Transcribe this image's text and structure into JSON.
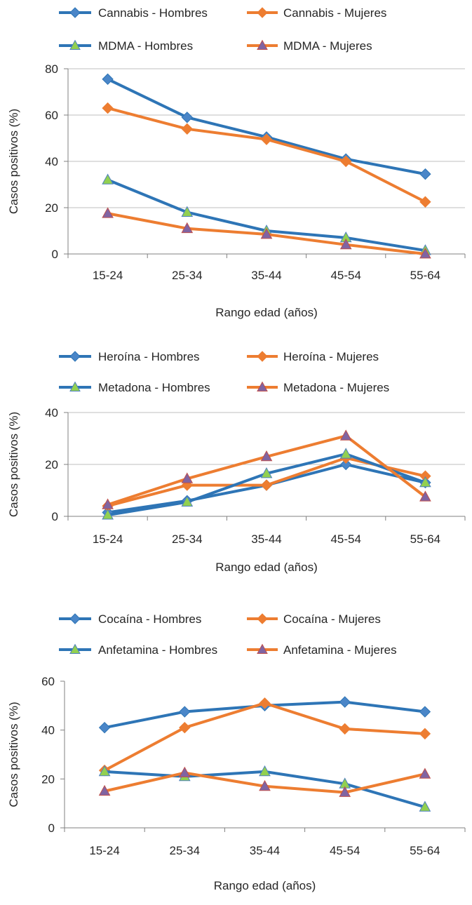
{
  "colors": {
    "hombres": "#2E75B6",
    "mujeres": "#ED7D31",
    "marker_hombres_fill": "#4A86C8",
    "triangle_fill": "#92D050",
    "triangle_mujeres_fill": "#8064A2",
    "axis": "#808080",
    "grid": "#BFBFBF"
  },
  "chart_data": [
    {
      "type": "line",
      "categories": [
        "15-24",
        "25-34",
        "35-44",
        "45-54",
        "55-64"
      ],
      "xlabel": "Rango edad (años)",
      "ylabel": "Casos positivos (%)",
      "ylim": [
        0,
        80
      ],
      "yticks": [
        0,
        20,
        40,
        60,
        80
      ],
      "grid": true,
      "legend_position": "top",
      "series": [
        {
          "name": "Cannabis - Hombres",
          "values": [
            75.5,
            59,
            50.5,
            41,
            34.5
          ],
          "color": "hombres",
          "marker": "diamond"
        },
        {
          "name": "Cannabis - Mujeres",
          "values": [
            63,
            54,
            49.5,
            40,
            22.5
          ],
          "color": "mujeres",
          "marker": "diamond"
        },
        {
          "name": "MDMA - Hombres",
          "values": [
            32,
            18,
            10,
            7,
            1.5
          ],
          "color": "hombres",
          "marker": "triangle"
        },
        {
          "name": "MDMA - Mujeres",
          "values": [
            17.5,
            11,
            8.5,
            4,
            0
          ],
          "color": "mujeres",
          "marker": "triangle"
        }
      ]
    },
    {
      "type": "line",
      "categories": [
        "15-24",
        "25-34",
        "35-44",
        "45-54",
        "55-64"
      ],
      "xlabel": "Rango edad (años)",
      "ylabel": "Casos positivos (%)",
      "ylim": [
        0,
        40
      ],
      "yticks": [
        0,
        20,
        40
      ],
      "grid": true,
      "legend_position": "top",
      "series": [
        {
          "name": "Heroína - Hombres",
          "values": [
            1.5,
            6,
            12,
            20,
            13
          ],
          "color": "hombres",
          "marker": "diamond"
        },
        {
          "name": "Heroína - Mujeres",
          "values": [
            4,
            12,
            12,
            22.5,
            15.5
          ],
          "color": "mujeres",
          "marker": "diamond"
        },
        {
          "name": "Metadona - Hombres",
          "values": [
            0.5,
            5.5,
            16.5,
            24,
            13
          ],
          "color": "hombres",
          "marker": "triangle"
        },
        {
          "name": "Metadona - Mujeres",
          "values": [
            4.5,
            14.5,
            23,
            31,
            7.5
          ],
          "color": "mujeres",
          "marker": "triangle"
        }
      ]
    },
    {
      "type": "line",
      "categories": [
        "15-24",
        "25-34",
        "35-44",
        "45-54",
        "55-64"
      ],
      "xlabel": "Rango edad (años)",
      "ylabel": "Casos positivos (%)",
      "ylim": [
        0,
        60
      ],
      "yticks": [
        0,
        20,
        40,
        60
      ],
      "grid": false,
      "legend_position": "top",
      "series": [
        {
          "name": "Cocaína - Hombres",
          "values": [
            41,
            47.5,
            50,
            51.5,
            47.5
          ],
          "color": "hombres",
          "marker": "diamond"
        },
        {
          "name": "Cocaína - Mujeres",
          "values": [
            23.5,
            41,
            51,
            40.5,
            38.5
          ],
          "color": "mujeres",
          "marker": "diamond"
        },
        {
          "name": "Anfetamina - Hombres",
          "values": [
            23,
            21,
            23,
            18,
            8.5
          ],
          "color": "hombres",
          "marker": "triangle"
        },
        {
          "name": "Anfetamina  - Mujeres",
          "values": [
            15,
            22.5,
            17,
            14.5,
            22
          ],
          "color": "mujeres",
          "marker": "triangle"
        }
      ]
    }
  ]
}
